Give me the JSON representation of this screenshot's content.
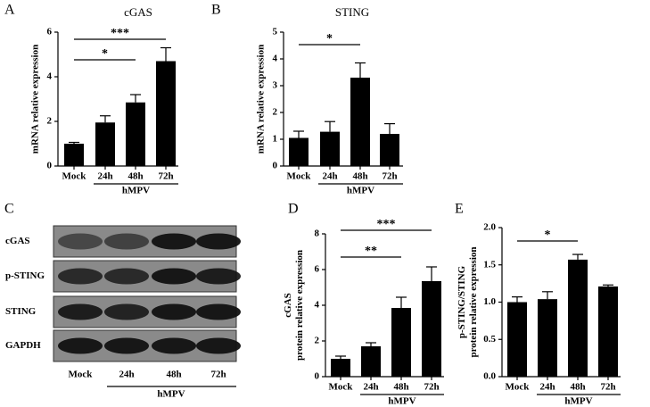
{
  "chart_data": [
    {
      "type": "bar",
      "letter": "A",
      "title": "cGAS",
      "ylabel": [
        "mRNA relative expression"
      ],
      "categories": [
        "Mock",
        "24h",
        "48h",
        "72h"
      ],
      "group_label": "hMPV",
      "values": [
        1.0,
        1.95,
        2.85,
        4.7
      ],
      "errors": [
        0.06,
        0.3,
        0.35,
        0.6
      ],
      "color": "#000000",
      "ylim": [
        0,
        6
      ],
      "yticks": [
        0,
        2,
        4,
        6
      ],
      "annotations": [
        {
          "from": 0,
          "to": 3,
          "label": "***"
        },
        {
          "from": 0,
          "to": 2,
          "label": "*"
        }
      ]
    },
    {
      "type": "bar",
      "letter": "B",
      "title": "STING",
      "ylabel": [
        "mRNA relative expression"
      ],
      "categories": [
        "Mock",
        "24h",
        "48h",
        "72h"
      ],
      "group_label": "hMPV",
      "values": [
        1.05,
        1.28,
        3.3,
        1.2
      ],
      "errors": [
        0.25,
        0.38,
        0.55,
        0.38
      ],
      "color": "#000000",
      "ylim": [
        0,
        5
      ],
      "yticks": [
        0,
        1,
        2,
        3,
        4,
        5
      ],
      "annotations": [
        {
          "from": 0,
          "to": 2,
          "label": "*"
        }
      ]
    },
    {
      "type": "bar",
      "letter": "D",
      "ylabel": [
        "cGAS",
        "protein relative expression"
      ],
      "categories": [
        "Mock",
        "24h",
        "48h",
        "72h"
      ],
      "group_label": "hMPV",
      "values": [
        1.0,
        1.7,
        3.85,
        5.35
      ],
      "errors": [
        0.15,
        0.2,
        0.6,
        0.8
      ],
      "color": "#000000",
      "ylim": [
        0,
        8
      ],
      "yticks": [
        0,
        2,
        4,
        6,
        8
      ],
      "annotations": [
        {
          "from": 0,
          "to": 3,
          "label": "***"
        },
        {
          "from": 0,
          "to": 2,
          "label": "**"
        }
      ]
    },
    {
      "type": "bar",
      "letter": "E",
      "ylabel": [
        "p-STING/STING",
        "protein relative expression"
      ],
      "categories": [
        "Mock",
        "24h",
        "48h",
        "72h"
      ],
      "group_label": "hMPV",
      "values": [
        1.0,
        1.04,
        1.57,
        1.21
      ],
      "errors": [
        0.07,
        0.1,
        0.07,
        0.02
      ],
      "color": "#000000",
      "ylim": [
        0,
        2
      ],
      "yticks": [
        {
          "value": 0,
          "label": "0.0"
        },
        {
          "value": 0.5,
          "label": "0.5"
        },
        {
          "value": 1,
          "label": "1.0"
        },
        {
          "value": 1.5,
          "label": "1.5"
        },
        {
          "value": 2,
          "label": "2.0"
        }
      ],
      "annotations": [
        {
          "from": 0,
          "to": 2,
          "label": "*"
        }
      ]
    }
  ],
  "blot": {
    "letter": "C",
    "rows": [
      "cGAS",
      "p-STING",
      "STING",
      "GAPDH"
    ],
    "lanes": [
      "Mock",
      "24h",
      "48h",
      "72h"
    ],
    "group_label": "hMPV"
  }
}
